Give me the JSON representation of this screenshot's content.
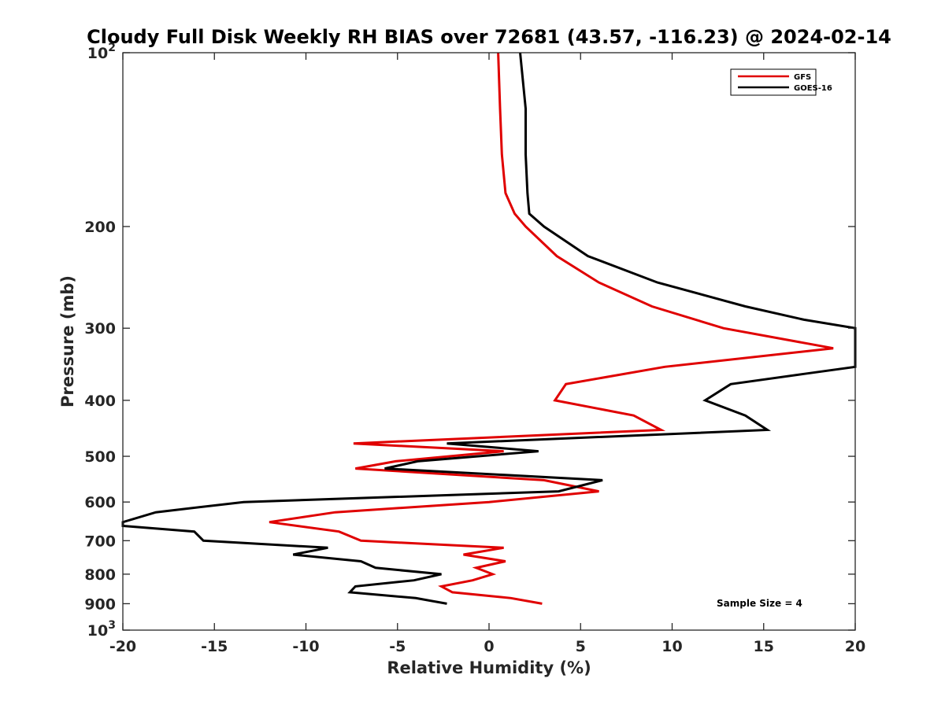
{
  "chart_data": {
    "type": "line",
    "title": "Cloudy Full Disk Weekly RH BIAS over 72681 (43.57, -116.23) @ 2024-02-14",
    "xlabel": "Relative Humidity (%)",
    "ylabel": "Pressure (mb)",
    "xlim": [
      -20,
      20
    ],
    "ylim": [
      100,
      1000
    ],
    "y_scale": "log",
    "y_reversed": true,
    "grid": false,
    "legend_position": "top-right",
    "x_ticks": [
      -20,
      -15,
      -10,
      -5,
      0,
      5,
      10,
      15,
      20
    ],
    "x_tick_labels": [
      "-20",
      "-15",
      "-10",
      "-5",
      "0",
      "5",
      "10",
      "15",
      "20"
    ],
    "y_ticks": [
      100,
      200,
      300,
      400,
      500,
      600,
      700,
      800,
      900,
      1000
    ],
    "y_tick_labels": [
      {
        "base": "10",
        "exp": "2"
      },
      {
        "base": "200",
        "exp": ""
      },
      {
        "base": "300",
        "exp": ""
      },
      {
        "base": "400",
        "exp": ""
      },
      {
        "base": "500",
        "exp": ""
      },
      {
        "base": "600",
        "exp": ""
      },
      {
        "base": "700",
        "exp": ""
      },
      {
        "base": "800",
        "exp": ""
      },
      {
        "base": "900",
        "exp": ""
      },
      {
        "base": "10",
        "exp": "3"
      }
    ],
    "series": [
      {
        "name": "GFS",
        "color": "#e00000",
        "points": [
          [
            0.5,
            100
          ],
          [
            0.6,
            125
          ],
          [
            0.7,
            150
          ],
          [
            0.9,
            175
          ],
          [
            1.4,
            190
          ],
          [
            2.0,
            200
          ],
          [
            3.7,
            225
          ],
          [
            6.0,
            250
          ],
          [
            8.9,
            275
          ],
          [
            12.8,
            300
          ],
          [
            18.8,
            325
          ],
          [
            9.6,
            350
          ],
          [
            4.2,
            375
          ],
          [
            3.6,
            400
          ],
          [
            7.9,
            425
          ],
          [
            9.4,
            450
          ],
          [
            -7.4,
            475
          ],
          [
            0.8,
            490
          ],
          [
            -5.1,
            510
          ],
          [
            -7.3,
            525
          ],
          [
            3.0,
            550
          ],
          [
            6.0,
            575
          ],
          [
            0.0,
            600
          ],
          [
            -8.4,
            625
          ],
          [
            -12.0,
            650
          ],
          [
            -8.2,
            675
          ],
          [
            -7.0,
            700
          ],
          [
            0.8,
            720
          ],
          [
            -1.4,
            740
          ],
          [
            0.9,
            760
          ],
          [
            -0.7,
            780
          ],
          [
            0.2,
            800
          ],
          [
            -0.9,
            820
          ],
          [
            -2.6,
            840
          ],
          [
            -2.0,
            860
          ],
          [
            1.2,
            880
          ],
          [
            2.9,
            900
          ]
        ]
      },
      {
        "name": "GOES-16",
        "color": "#000000",
        "points": [
          [
            1.7,
            100
          ],
          [
            2.0,
            125
          ],
          [
            2.0,
            150
          ],
          [
            2.1,
            175
          ],
          [
            2.2,
            190
          ],
          [
            3.0,
            200
          ],
          [
            5.4,
            225
          ],
          [
            9.2,
            250
          ],
          [
            14.0,
            275
          ],
          [
            17.2,
            290
          ],
          [
            20.0,
            300
          ],
          [
            20.0,
            350
          ],
          [
            17.2,
            360
          ],
          [
            13.2,
            375
          ],
          [
            11.8,
            400
          ],
          [
            14.0,
            425
          ],
          [
            15.2,
            450
          ],
          [
            -2.3,
            475
          ],
          [
            2.7,
            490
          ],
          [
            -3.9,
            510
          ],
          [
            -5.7,
            525
          ],
          [
            6.2,
            550
          ],
          [
            3.8,
            575
          ],
          [
            -13.4,
            600
          ],
          [
            -18.2,
            625
          ],
          [
            -20.0,
            650
          ],
          [
            -20.0,
            660
          ],
          [
            -16.1,
            675
          ],
          [
            -15.6,
            700
          ],
          [
            -8.8,
            720
          ],
          [
            -10.7,
            740
          ],
          [
            -7.0,
            760
          ],
          [
            -6.2,
            780
          ],
          [
            -2.6,
            800
          ],
          [
            -4.1,
            820
          ],
          [
            -7.3,
            840
          ],
          [
            -7.6,
            860
          ],
          [
            -4.0,
            880
          ],
          [
            -2.3,
            900
          ]
        ]
      }
    ],
    "annotations": [
      {
        "text": "Sample Size = 4",
        "x": 15,
        "y": 900
      }
    ]
  }
}
